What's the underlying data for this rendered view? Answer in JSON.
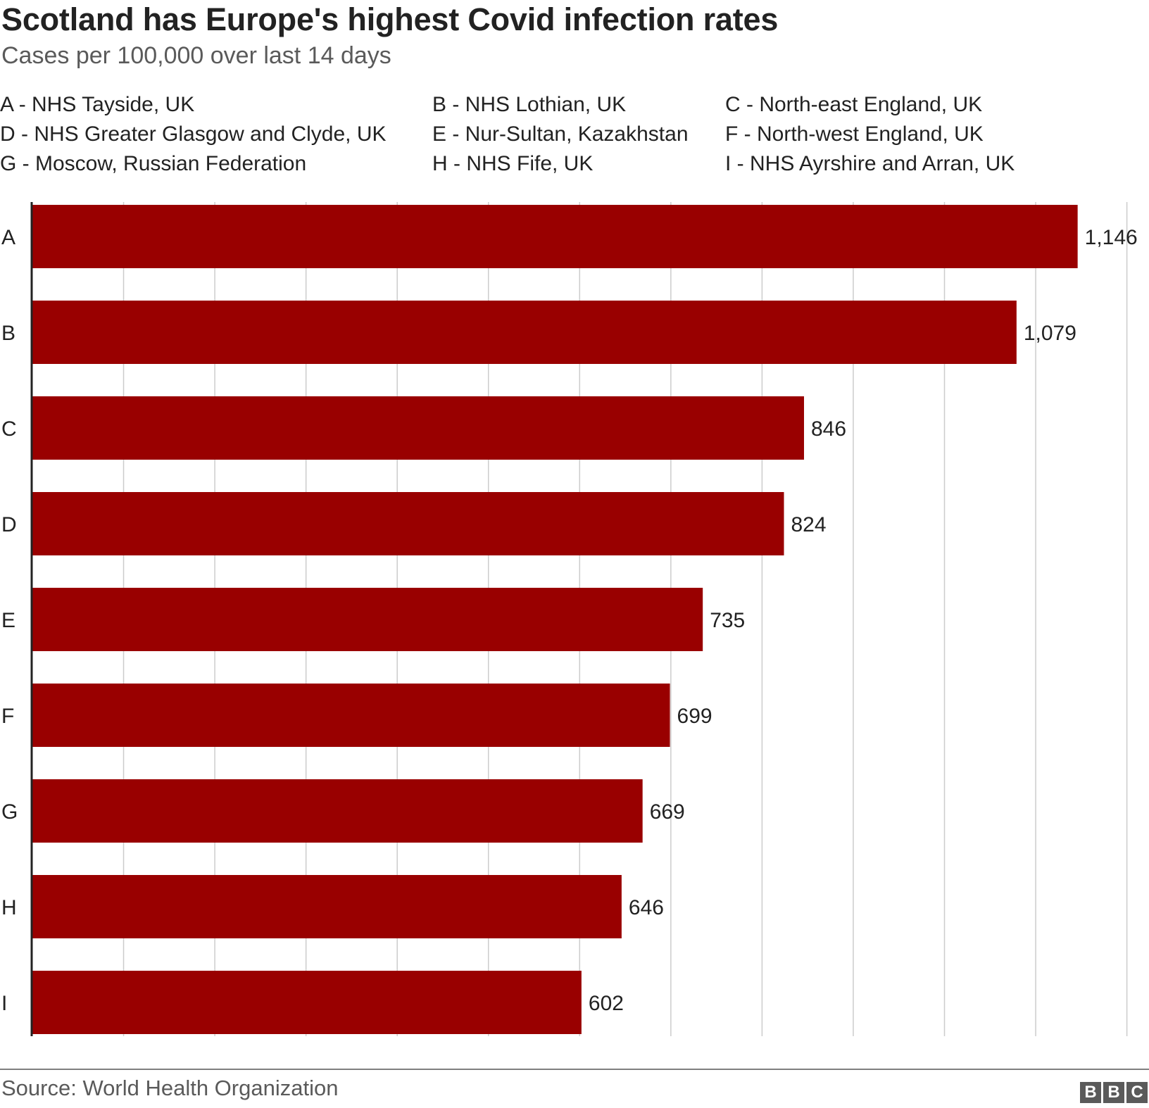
{
  "chart_data": {
    "type": "bar",
    "orientation": "horizontal",
    "title": "Scotland has Europe's highest Covid infection rates",
    "subtitle": "Cases per 100,000 over last 14 days",
    "categories": [
      "A",
      "B",
      "C",
      "D",
      "E",
      "F",
      "G",
      "H",
      "I"
    ],
    "values": [
      1146,
      1079,
      846,
      824,
      735,
      699,
      669,
      646,
      602
    ],
    "value_labels": [
      "1,146",
      "1,079",
      "846",
      "824",
      "735",
      "699",
      "669",
      "646",
      "602"
    ],
    "key": [
      "A - NHS Tayside, UK",
      "B - NHS Lothian, UK",
      "C - North-east England, UK",
      "D - NHS Greater Glasgow and Clyde, UK",
      "E - Nur-Sultan, Kazakhstan",
      "F - North-west England, UK",
      "G - Moscow, Russian Federation",
      "H - NHS Fife, UK",
      "I - NHS Ayrshire and Arran, UK"
    ],
    "xlim": [
      0,
      1200
    ],
    "grid_interval": 100,
    "grid": true,
    "xlabel": "",
    "ylabel": "",
    "bar_color": "#990000",
    "grid_color": "#cccccc"
  },
  "footer": {
    "source": "Source: World Health Organization",
    "logo": [
      "B",
      "B",
      "C"
    ]
  }
}
